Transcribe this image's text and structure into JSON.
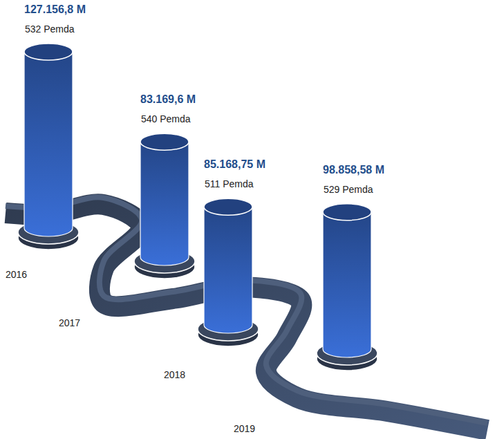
{
  "chart_data": {
    "type": "bar",
    "categories": [
      "2016",
      "2017",
      "2018",
      "2019"
    ],
    "values": [
      127156.8,
      83169.6,
      85168.75,
      98858.58
    ],
    "value_labels": [
      "127.156,8 M",
      "83.169,6 M",
      "85.168,75 M",
      "98.858,58 M"
    ],
    "annotations": [
      "532 Pemda",
      "540 Pemda",
      "511 Pemda",
      "529 Pemda"
    ],
    "color": "#3a6fd8",
    "data_labels": true,
    "tick_labels": "x"
  }
}
